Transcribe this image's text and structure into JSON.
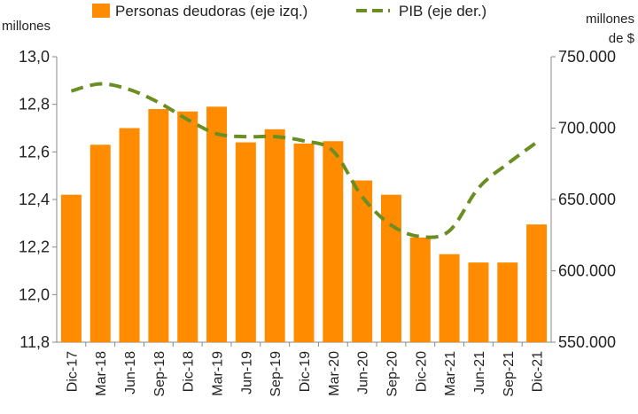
{
  "chart_data": {
    "type": "bar",
    "title": "",
    "categories": [
      "Dic-17",
      "Mar-18",
      "Jun-18",
      "Sep-18",
      "Dic-18",
      "Mar-19",
      "Jun-19",
      "Sep-19",
      "Dic-19",
      "Mar-20",
      "Jun-20",
      "Sep-20",
      "Dic-20",
      "Mar-21",
      "Jun-21",
      "Sep-21",
      "Dic-21"
    ],
    "series": [
      {
        "name": "Personas deudoras (eje izq.)",
        "kind": "bar",
        "axis": "left",
        "color": "#FF8C00",
        "values": [
          12.42,
          12.63,
          12.7,
          12.78,
          12.77,
          12.79,
          12.64,
          12.695,
          12.635,
          12.645,
          12.48,
          12.42,
          12.24,
          12.17,
          12.135,
          12.135,
          12.295
        ]
      },
      {
        "name": "PIB (eje der.)",
        "kind": "line",
        "line_style": "dashed",
        "axis": "right",
        "color": "#6B8E23",
        "values": [
          726,
          731,
          727,
          718,
          706,
          696,
          694,
          694,
          691,
          684,
          652,
          632,
          624,
          628,
          658,
          675,
          690
        ]
      }
    ],
    "left_axis": {
      "label": "millones",
      "range": [
        11.8,
        13.0
      ],
      "ticks": [
        11.8,
        12.0,
        12.2,
        12.4,
        12.6,
        12.8,
        13.0
      ],
      "tick_labels": [
        "11,8",
        "12,0",
        "12,2",
        "12,4",
        "12,6",
        "12,8",
        "13,0"
      ]
    },
    "right_axis": {
      "label_lines": [
        "millones",
        "de $"
      ],
      "range": [
        550,
        750
      ],
      "ticks": [
        550,
        600,
        650,
        700,
        750
      ],
      "tick_labels": [
        "550.000",
        "600.000",
        "650.000",
        "700.000",
        "750.000"
      ]
    },
    "legend_position": "top"
  }
}
